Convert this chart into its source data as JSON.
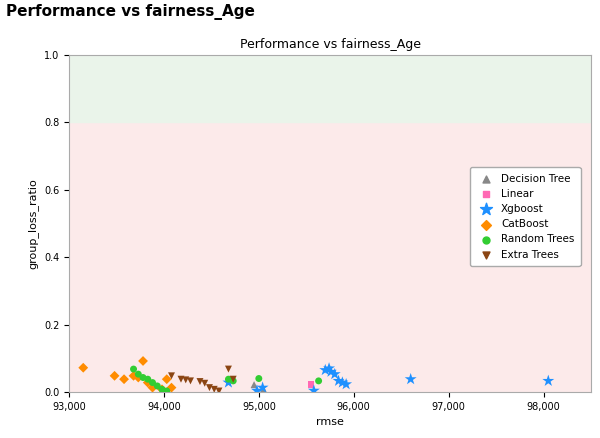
{
  "title_outside": "Performance vs fairness_Age",
  "title_inside": "Performance vs fairness_Age",
  "xlabel": "rmse",
  "ylabel": "group_loss_ratio",
  "xlim": [
    93000,
    98500
  ],
  "ylim": [
    0.0,
    1.0
  ],
  "green_band": [
    0.8,
    1.0
  ],
  "pink_band": [
    0.0,
    0.8
  ],
  "green_color": "#eaf4ea",
  "pink_color": "#fceaea",
  "series": {
    "Decision Tree": {
      "marker": "^",
      "color": "#888888",
      "points": [
        [
          94950,
          0.022
        ],
        [
          95050,
          0.008
        ]
      ]
    },
    "Linear": {
      "marker": "s",
      "color": "#ff69b4",
      "points": [
        [
          95550,
          0.022
        ]
      ]
    },
    "Xgboost": {
      "marker": "*",
      "color": "#1e90ff",
      "points": [
        [
          94680,
          0.028
        ],
        [
          94980,
          0.004
        ],
        [
          95040,
          0.013
        ],
        [
          95580,
          0.004
        ],
        [
          95700,
          0.065
        ],
        [
          95740,
          0.07
        ],
        [
          95760,
          0.06
        ],
        [
          95800,
          0.053
        ],
        [
          95840,
          0.033
        ],
        [
          95880,
          0.028
        ],
        [
          95920,
          0.023
        ],
        [
          96600,
          0.038
        ],
        [
          98050,
          0.033
        ]
      ]
    },
    "CatBoost": {
      "marker": "D",
      "color": "#ff8c00",
      "points": [
        [
          93150,
          0.072
        ],
        [
          93480,
          0.048
        ],
        [
          93580,
          0.038
        ],
        [
          93680,
          0.048
        ],
        [
          93730,
          0.043
        ],
        [
          93780,
          0.092
        ],
        [
          93830,
          0.028
        ],
        [
          93880,
          0.013
        ],
        [
          93980,
          0.008
        ],
        [
          94030,
          0.038
        ],
        [
          94080,
          0.013
        ]
      ]
    },
    "Random Trees": {
      "marker": "o",
      "color": "#32cd32",
      "points": [
        [
          93680,
          0.068
        ],
        [
          93730,
          0.053
        ],
        [
          93780,
          0.043
        ],
        [
          93830,
          0.038
        ],
        [
          93880,
          0.028
        ],
        [
          93930,
          0.018
        ],
        [
          93980,
          0.008
        ],
        [
          94030,
          0.003
        ],
        [
          94680,
          0.038
        ],
        [
          94730,
          0.033
        ],
        [
          95000,
          0.04
        ],
        [
          95630,
          0.033
        ]
      ]
    },
    "Extra Trees": {
      "marker": "v",
      "color": "#8b4513",
      "points": [
        [
          94080,
          0.048
        ],
        [
          94180,
          0.038
        ],
        [
          94230,
          0.036
        ],
        [
          94280,
          0.033
        ],
        [
          94380,
          0.031
        ],
        [
          94430,
          0.026
        ],
        [
          94480,
          0.013
        ],
        [
          94530,
          0.008
        ],
        [
          94580,
          0.003
        ],
        [
          94680,
          0.068
        ],
        [
          94730,
          0.038
        ]
      ]
    }
  },
  "legend_order": [
    "Decision Tree",
    "Linear",
    "Xgboost",
    "CatBoost",
    "Random Trees",
    "Extra Trees"
  ],
  "figsize": [
    6.0,
    4.38
  ],
  "dpi": 100,
  "outer_title_fontsize": 11,
  "inner_title_fontsize": 9,
  "axis_label_fontsize": 8,
  "tick_fontsize": 7,
  "legend_fontsize": 7.5,
  "marker_size": 5,
  "star_size": 9
}
